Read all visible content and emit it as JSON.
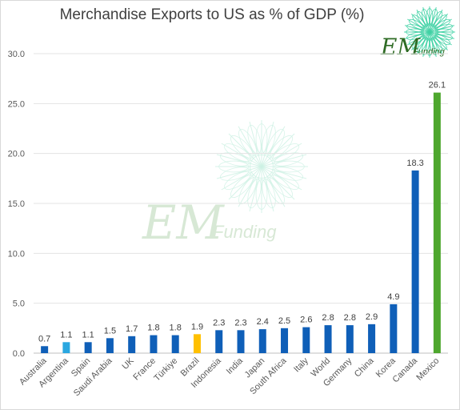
{
  "chart_data": {
    "type": "bar",
    "title": "Merchandise Exports to US as % of GDP (%)",
    "categories": [
      "Australia",
      "Argentina",
      "Spain",
      "Saudi Arabia",
      "UK",
      "France",
      "Türkiye",
      "Brazil",
      "Indonesia",
      "India",
      "Japan",
      "South Africa",
      "Italy",
      "World",
      "Germany",
      "China",
      "Korea",
      "Canada",
      "Mexico"
    ],
    "values": [
      0.7,
      1.1,
      1.1,
      1.5,
      1.7,
      1.8,
      1.8,
      1.9,
      2.3,
      2.3,
      2.4,
      2.5,
      2.6,
      2.8,
      2.8,
      2.9,
      4.9,
      18.3,
      26.1
    ],
    "value_labels": [
      "0.7",
      "1.1",
      "1.1",
      "1.5",
      "1.7",
      "1.8",
      "1.8",
      "1.9",
      "2.3",
      "2.3",
      "2.4",
      "2.5",
      "2.6",
      "2.8",
      "2.8",
      "2.9",
      "4.9",
      "18.3",
      "26.1"
    ],
    "bar_colors": [
      "#0f5fb8",
      "#2aa7e0",
      "#0f5fb8",
      "#0f5fb8",
      "#0f5fb8",
      "#0f5fb8",
      "#0f5fb8",
      "#ffc000",
      "#0f5fb8",
      "#0f5fb8",
      "#0f5fb8",
      "#0f5fb8",
      "#0f5fb8",
      "#0f5fb8",
      "#0f5fb8",
      "#0f5fb8",
      "#0f5fb8",
      "#0f5fb8",
      "#4ea72e"
    ],
    "yticks": [
      "0.0",
      "5.0",
      "10.0",
      "15.0",
      "20.0",
      "25.0",
      "30.0"
    ],
    "ylim": [
      0,
      30
    ],
    "grid": true,
    "legend": "none"
  },
  "logo": {
    "text_em": "EM",
    "text_funding": "Funding",
    "color": "#3a7d2c"
  }
}
